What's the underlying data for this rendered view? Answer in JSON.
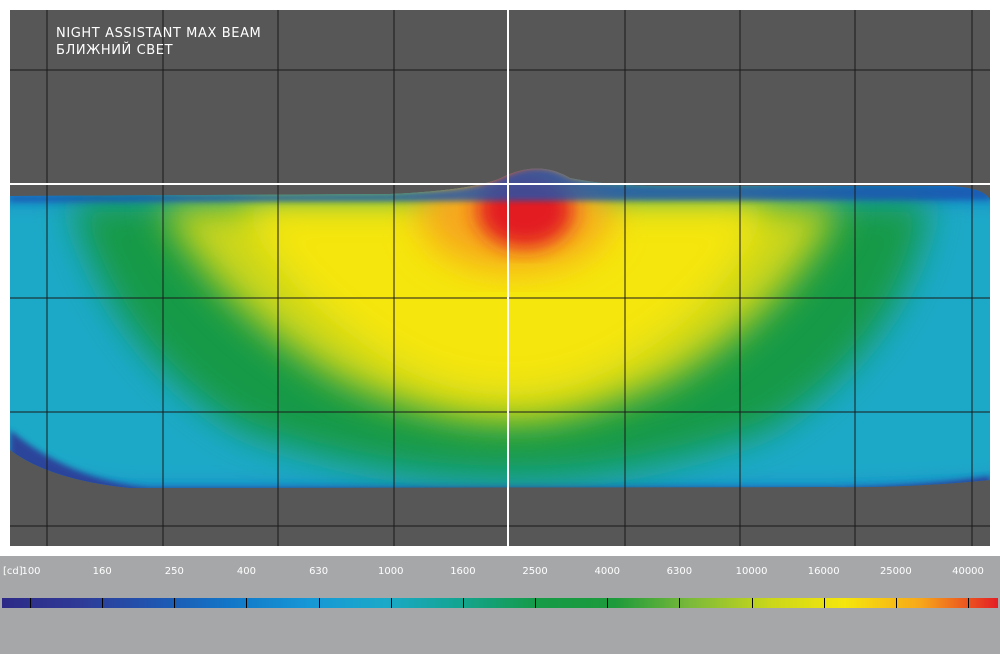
{
  "chart_data": {
    "type": "heatmap",
    "title": "NIGHT ASSISTANT MAX BEAM",
    "subtitle": "БЛИЖНИЙ СВЕТ",
    "colorbar": {
      "unit_label": "[cd]",
      "values": [
        100,
        160,
        250,
        400,
        630,
        1000,
        1600,
        2500,
        4000,
        6300,
        10000,
        16000,
        25000,
        40000
      ],
      "labels": [
        "100",
        "160",
        "250",
        "400",
        "630",
        "1000",
        "1600",
        "2500",
        "4000",
        "6300",
        "10000",
        "16000",
        "25000",
        "40000"
      ],
      "colors": [
        "#2d2a87",
        "#2e3a96",
        "#1f55b0",
        "#1177c8",
        "#1697d6",
        "#1aa9c8",
        "#14a48f",
        "#159a46",
        "#1d9a3b",
        "#7cba3a",
        "#c9d61a",
        "#f5e60c",
        "#f7a61a",
        "#e31e24"
      ]
    },
    "grid": true,
    "max_intensity_label": "40000"
  }
}
